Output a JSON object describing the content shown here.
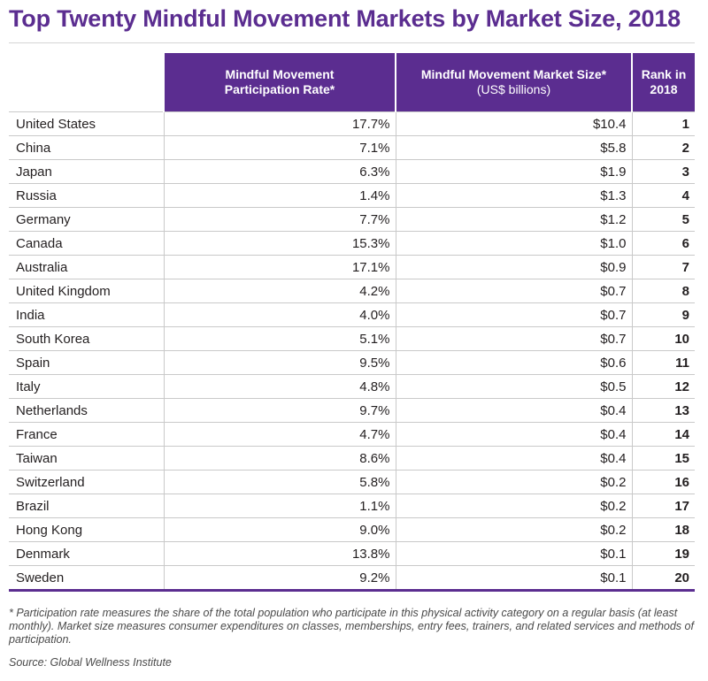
{
  "title": "Top Twenty Mindful Movement Markets by Market Size, 2018",
  "table": {
    "headers": {
      "country": "",
      "participation_line1": "Mindful Movement",
      "participation_line2": "Participation Rate*",
      "market_line1": "Mindful Movement Market Size*",
      "market_line2": "(US$ billions)",
      "rank_line1": "Rank in",
      "rank_line2": "2018"
    },
    "rows": [
      {
        "country": "United States",
        "rate": "17.7%",
        "size": "$10.4",
        "rank": "1"
      },
      {
        "country": "China",
        "rate": "7.1%",
        "size": "$5.8",
        "rank": "2"
      },
      {
        "country": "Japan",
        "rate": "6.3%",
        "size": "$1.9",
        "rank": "3"
      },
      {
        "country": "Russia",
        "rate": "1.4%",
        "size": "$1.3",
        "rank": "4"
      },
      {
        "country": "Germany",
        "rate": "7.7%",
        "size": "$1.2",
        "rank": "5"
      },
      {
        "country": "Canada",
        "rate": "15.3%",
        "size": "$1.0",
        "rank": "6"
      },
      {
        "country": "Australia",
        "rate": "17.1%",
        "size": "$0.9",
        "rank": "7"
      },
      {
        "country": "United Kingdom",
        "rate": "4.2%",
        "size": "$0.7",
        "rank": "8"
      },
      {
        "country": "India",
        "rate": "4.0%",
        "size": "$0.7",
        "rank": "9"
      },
      {
        "country": "South Korea",
        "rate": "5.1%",
        "size": "$0.7",
        "rank": "10"
      },
      {
        "country": "Spain",
        "rate": "9.5%",
        "size": "$0.6",
        "rank": "11"
      },
      {
        "country": "Italy",
        "rate": "4.8%",
        "size": "$0.5",
        "rank": "12"
      },
      {
        "country": "Netherlands",
        "rate": "9.7%",
        "size": "$0.4",
        "rank": "13"
      },
      {
        "country": "France",
        "rate": "4.7%",
        "size": "$0.4",
        "rank": "14"
      },
      {
        "country": "Taiwan",
        "rate": "8.6%",
        "size": "$0.4",
        "rank": "15"
      },
      {
        "country": "Switzerland",
        "rate": "5.8%",
        "size": "$0.2",
        "rank": "16"
      },
      {
        "country": "Brazil",
        "rate": "1.1%",
        "size": "$0.2",
        "rank": "17"
      },
      {
        "country": "Hong Kong",
        "rate": "9.0%",
        "size": "$0.2",
        "rank": "18"
      },
      {
        "country": "Denmark",
        "rate": "13.8%",
        "size": "$0.1",
        "rank": "19"
      },
      {
        "country": "Sweden",
        "rate": "9.2%",
        "size": "$0.1",
        "rank": "20"
      }
    ]
  },
  "footnote": "* Participation rate measures the share of the total population who participate in this physical activity category on a regular basis (at least monthly). Market size measures consumer expenditures on classes, memberships, entry fees, trainers, and related services and methods of participation.",
  "source": "Source: Global Wellness Institute",
  "colors": {
    "accent": "#5b2d90",
    "grid": "#c9c9c9",
    "text": "#231f20"
  }
}
